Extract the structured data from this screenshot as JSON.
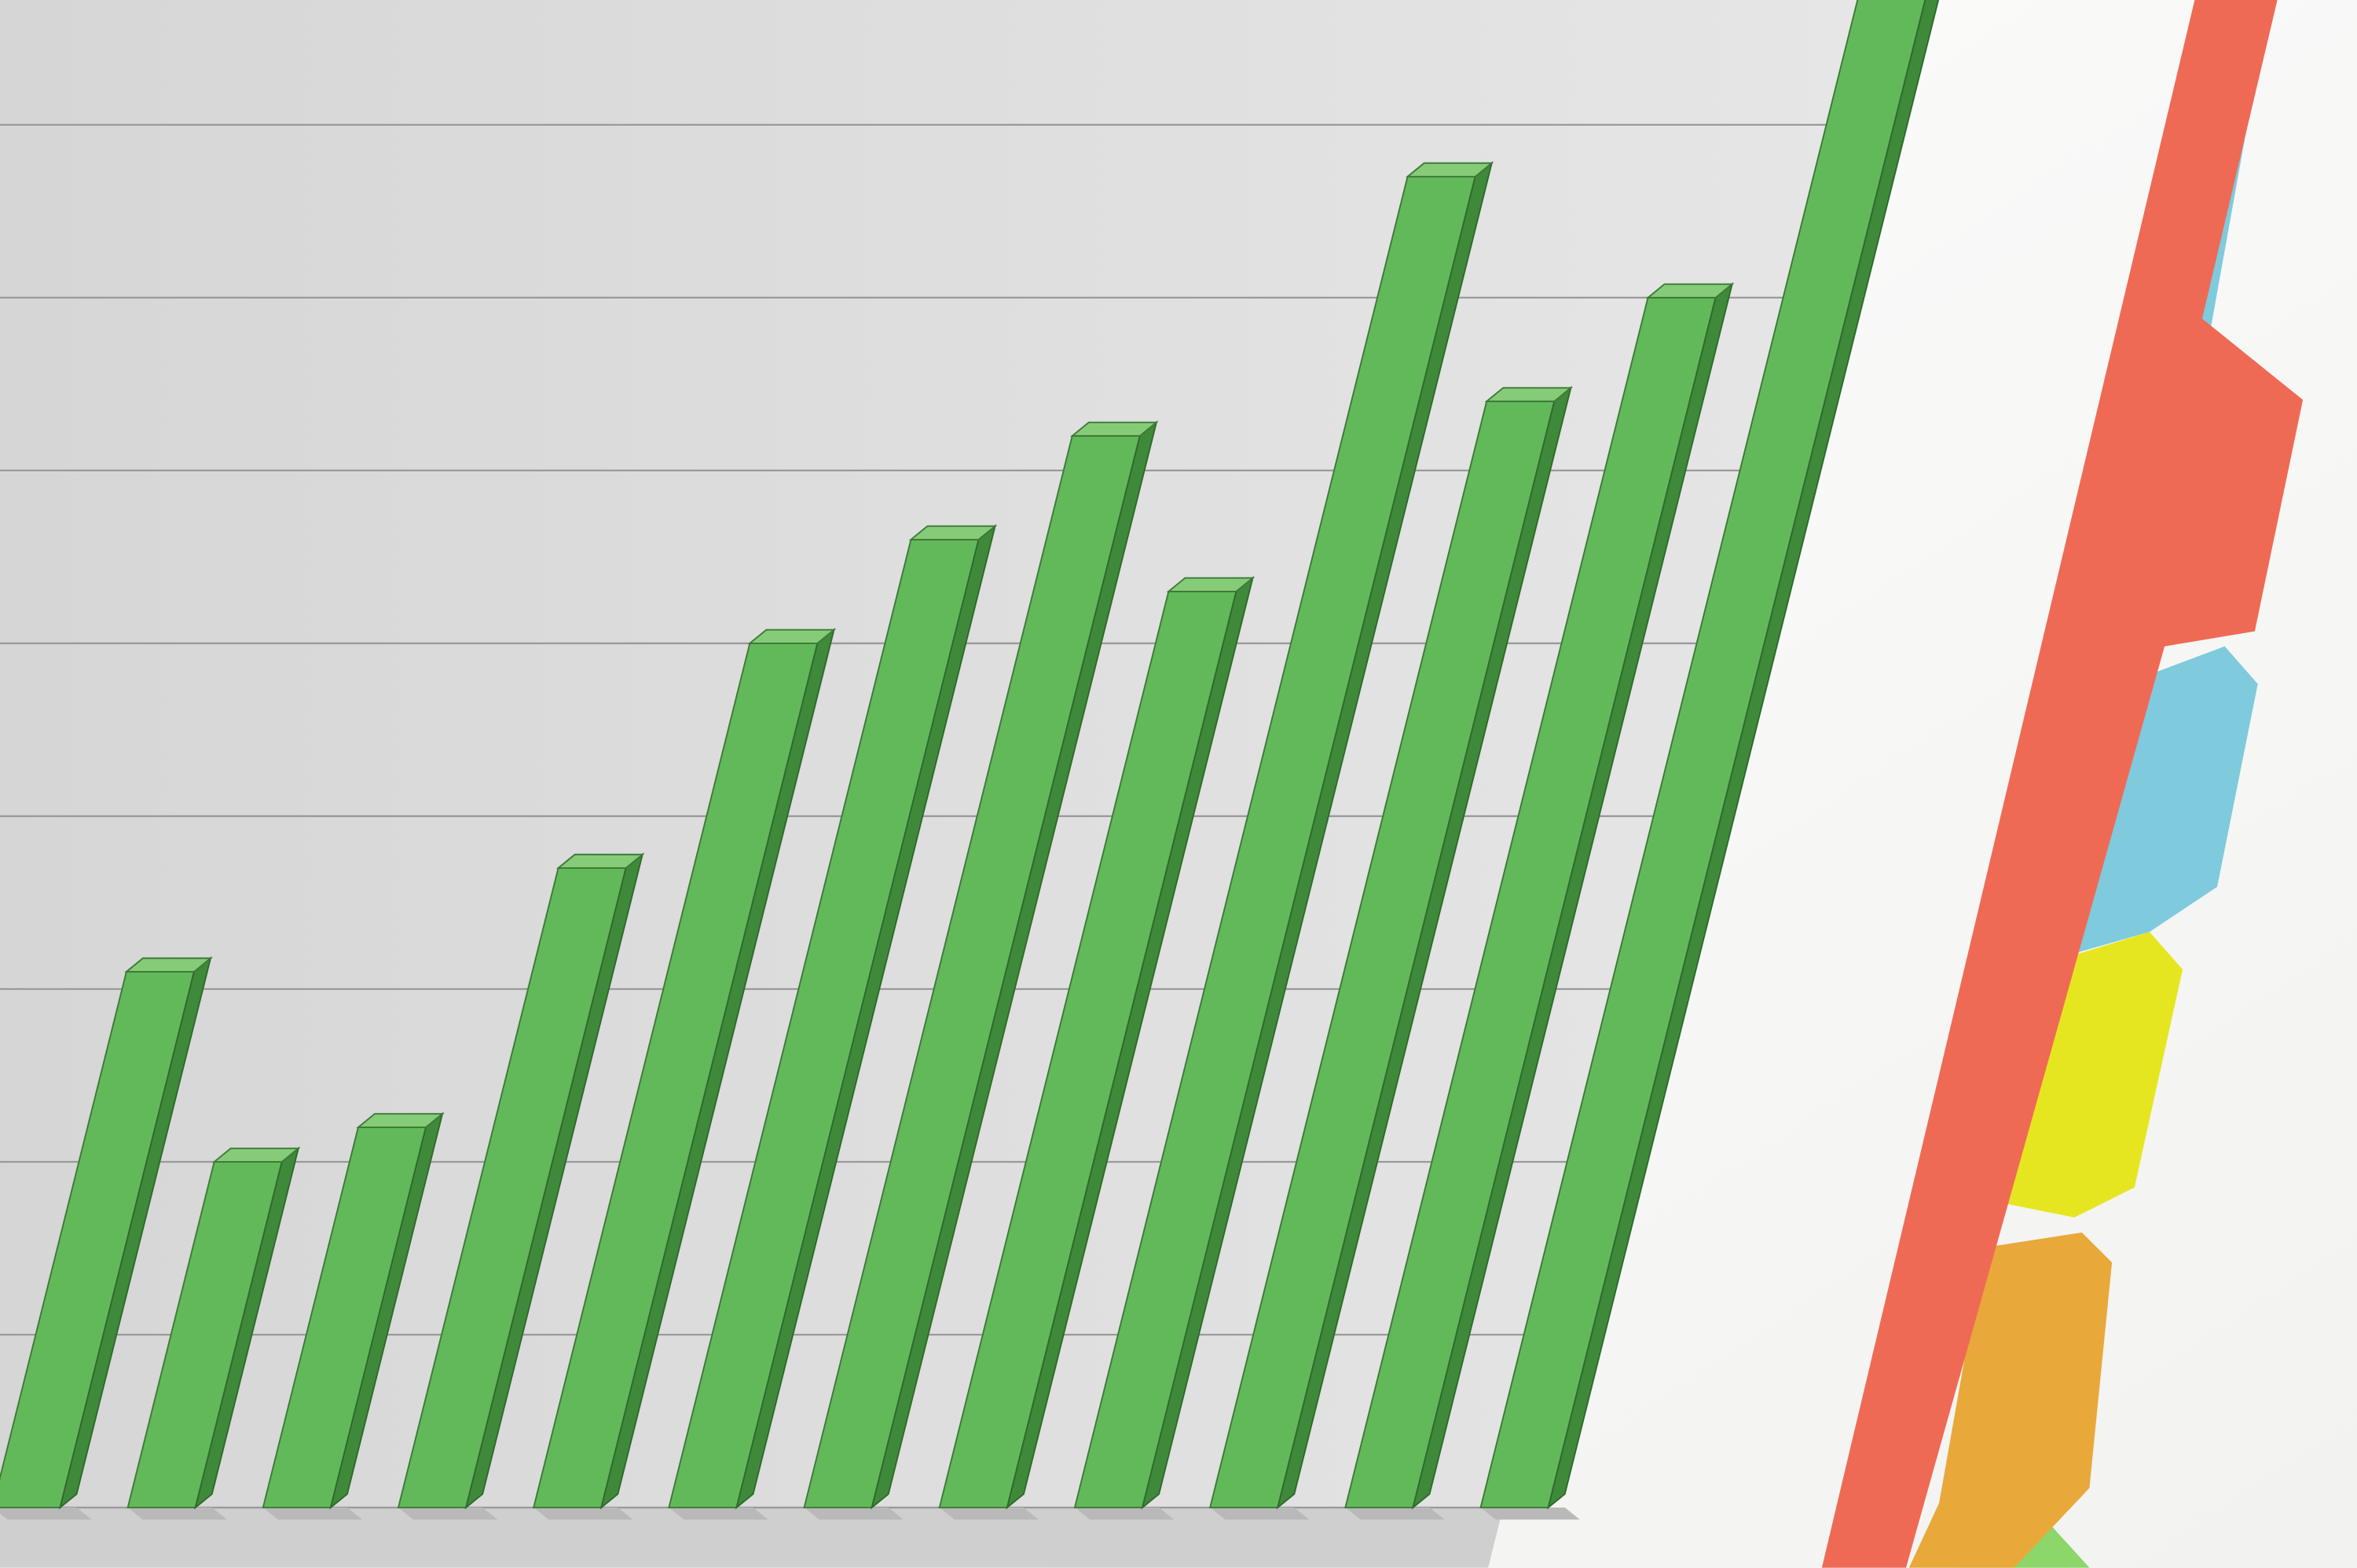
{
  "chart_data": {
    "type": "bar",
    "values": [
      3.1,
      2.0,
      2.2,
      3.7,
      5.0,
      5.6,
      6.2,
      5.3,
      7.7,
      6.4,
      7.0,
      9.5
    ],
    "color": "#62b95a",
    "ylim": [
      0,
      9
    ],
    "yticks": [
      0,
      1,
      2,
      3,
      4,
      5,
      6,
      7,
      8,
      9
    ],
    "grid": true
  }
}
